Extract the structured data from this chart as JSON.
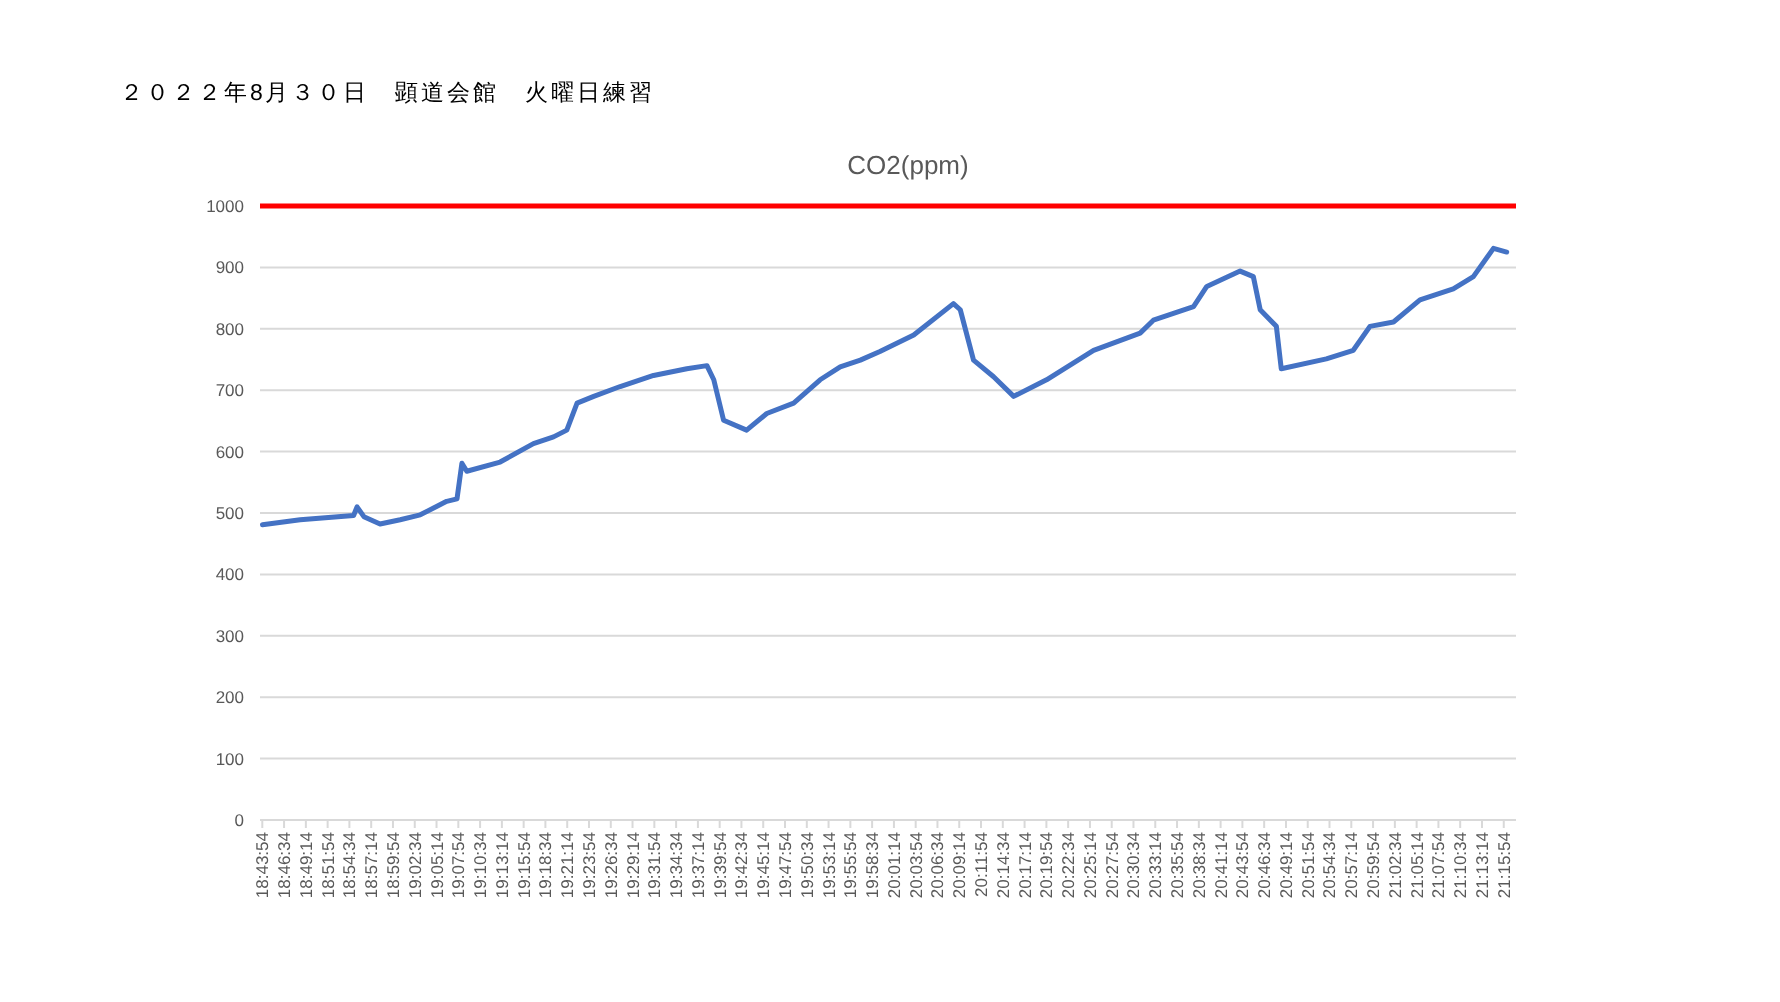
{
  "chart_data": {
    "type": "line",
    "title": "２０２２年8月３０日　顕道会館　火曜日練習",
    "subtitle": "CO2(ppm)",
    "x": [
      18.732,
      18.809,
      18.918,
      18.925,
      18.939,
      18.972,
      19.013,
      19.054,
      19.108,
      19.129,
      19.139,
      19.149,
      19.217,
      19.285,
      19.326,
      19.353,
      19.374,
      19.408,
      19.462,
      19.53,
      19.598,
      19.639,
      19.653,
      19.673,
      19.72,
      19.761,
      19.816,
      19.87,
      19.911,
      19.952,
      19.992,
      20.061,
      20.142,
      20.156,
      20.183,
      20.224,
      20.265,
      20.332,
      20.428,
      20.523,
      20.55,
      20.632,
      20.659,
      20.727,
      20.754,
      20.768,
      20.801,
      20.811,
      20.903,
      20.958,
      20.992,
      21.04,
      21.094,
      21.162,
      21.203,
      21.244,
      21.271
    ],
    "series": [
      {
        "color": "#4472c4",
        "values": [
          481,
          489,
          496,
          510,
          494,
          482,
          489,
          497,
          519,
          523,
          581,
          568,
          583,
          613,
          624,
          635,
          679,
          690,
          706,
          724,
          735,
          740,
          717,
          651,
          635,
          662,
          679,
          717,
          738,
          749,
          763,
          790,
          841,
          831,
          749,
          722,
          690,
          717,
          765,
          793,
          814,
          836,
          869,
          894,
          885,
          831,
          804,
          735,
          751,
          765,
          804,
          811,
          847,
          865,
          885,
          931,
          925
        ]
      }
    ],
    "xlim": [
      18.727,
      21.29
    ],
    "xticks": [
      {
        "value": 18.7317,
        "label": "18:43:54"
      },
      {
        "value": 18.7761,
        "label": "18:46:34"
      },
      {
        "value": 18.8206,
        "label": "18:49:14"
      },
      {
        "value": 18.865,
        "label": "18:51:54"
      },
      {
        "value": 18.9094,
        "label": "18:54:34"
      },
      {
        "value": 18.9539,
        "label": "18:57:14"
      },
      {
        "value": 18.9983,
        "label": "18:59:54"
      },
      {
        "value": 19.0428,
        "label": "19:02:34"
      },
      {
        "value": 19.0872,
        "label": "19:05:14"
      },
      {
        "value": 19.1317,
        "label": "19:07:54"
      },
      {
        "value": 19.1761,
        "label": "19:10:34"
      },
      {
        "value": 19.2206,
        "label": "19:13:14"
      },
      {
        "value": 19.265,
        "label": "19:15:54"
      },
      {
        "value": 19.3094,
        "label": "19:18:34"
      },
      {
        "value": 19.3539,
        "label": "19:21:14"
      },
      {
        "value": 19.3983,
        "label": "19:23:54"
      },
      {
        "value": 19.4428,
        "label": "19:26:34"
      },
      {
        "value": 19.4872,
        "label": "19:29:14"
      },
      {
        "value": 19.5317,
        "label": "19:31:54"
      },
      {
        "value": 19.5761,
        "label": "19:34:34"
      },
      {
        "value": 19.6206,
        "label": "19:37:14"
      },
      {
        "value": 19.665,
        "label": "19:39:54"
      },
      {
        "value": 19.7094,
        "label": "19:42:34"
      },
      {
        "value": 19.7539,
        "label": "19:45:14"
      },
      {
        "value": 19.7983,
        "label": "19:47:54"
      },
      {
        "value": 19.8428,
        "label": "19:50:34"
      },
      {
        "value": 19.8872,
        "label": "19:53:14"
      },
      {
        "value": 19.9317,
        "label": "19:55:54"
      },
      {
        "value": 19.9761,
        "label": "19:58:34"
      },
      {
        "value": 20.0206,
        "label": "20:01:14"
      },
      {
        "value": 20.065,
        "label": "20:03:54"
      },
      {
        "value": 20.1094,
        "label": "20:06:34"
      },
      {
        "value": 20.1539,
        "label": "20:09:14"
      },
      {
        "value": 20.1983,
        "label": "20:11:54"
      },
      {
        "value": 20.2428,
        "label": "20:14:34"
      },
      {
        "value": 20.2872,
        "label": "20:17:14"
      },
      {
        "value": 20.3317,
        "label": "20:19:54"
      },
      {
        "value": 20.3761,
        "label": "20:22:34"
      },
      {
        "value": 20.4206,
        "label": "20:25:14"
      },
      {
        "value": 20.465,
        "label": "20:27:54"
      },
      {
        "value": 20.5094,
        "label": "20:30:34"
      },
      {
        "value": 20.5539,
        "label": "20:33:14"
      },
      {
        "value": 20.5983,
        "label": "20:35:54"
      },
      {
        "value": 20.6428,
        "label": "20:38:34"
      },
      {
        "value": 20.6872,
        "label": "20:41:14"
      },
      {
        "value": 20.7317,
        "label": "20:43:54"
      },
      {
        "value": 20.7761,
        "label": "20:46:34"
      },
      {
        "value": 20.8206,
        "label": "20:49:14"
      },
      {
        "value": 20.865,
        "label": "20:51:54"
      },
      {
        "value": 20.9094,
        "label": "20:54:34"
      },
      {
        "value": 20.9539,
        "label": "20:57:14"
      },
      {
        "value": 20.9983,
        "label": "20:59:54"
      },
      {
        "value": 21.0428,
        "label": "21:02:34"
      },
      {
        "value": 21.0872,
        "label": "21:05:14"
      },
      {
        "value": 21.1317,
        "label": "21:07:54"
      },
      {
        "value": 21.1761,
        "label": "21:10:34"
      },
      {
        "value": 21.2206,
        "label": "21:13:14"
      },
      {
        "value": 21.265,
        "label": "21:15:54"
      }
    ],
    "ylim": [
      0,
      1000
    ],
    "yticks": [
      0,
      100,
      200,
      300,
      400,
      500,
      600,
      700,
      800,
      900,
      1000
    ],
    "grid": "y",
    "ref_lines": [
      {
        "axis": "y",
        "value": 1000,
        "color": "#ff0000"
      }
    ]
  }
}
